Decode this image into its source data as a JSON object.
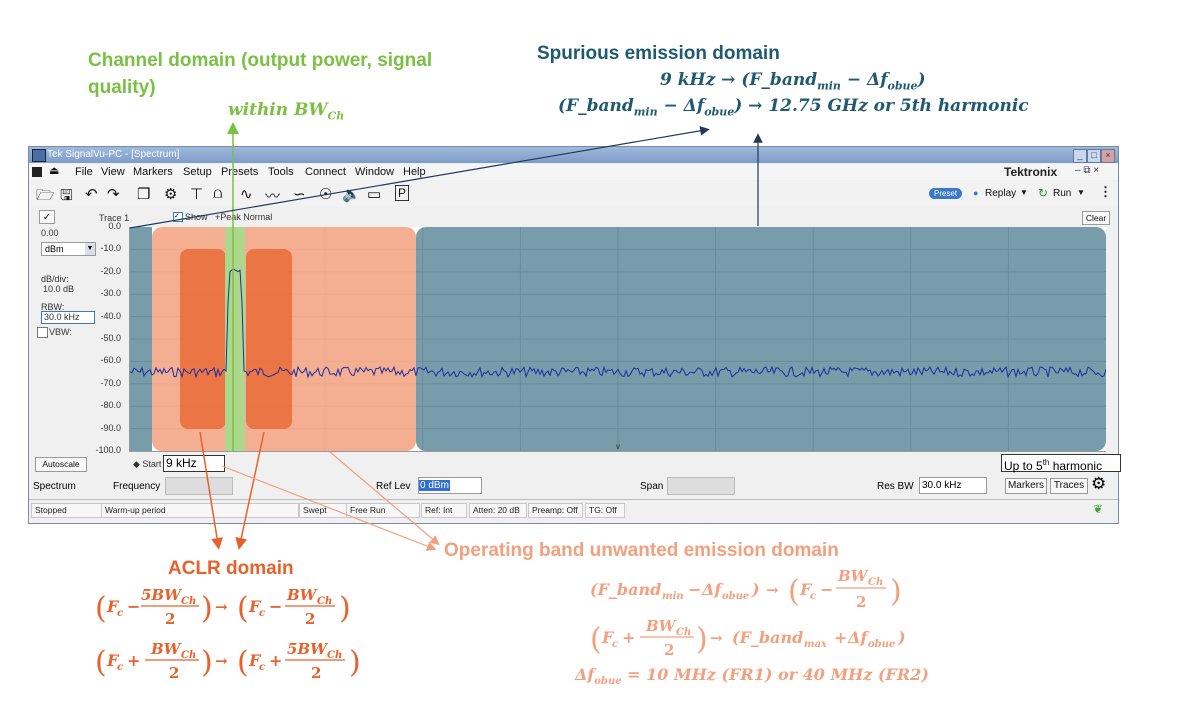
{
  "annotations": {
    "channel_title": "Channel domain (output power, signal quality)",
    "channel_formula": "within BW",
    "channel_formula_sub": "Ch",
    "spurious_title": "Spurious emission domain",
    "spurious_line1": "9 kHz → (F_band",
    "spurious_line1_sub1": "min",
    "spurious_line1_mid": " − Δf",
    "spurious_line1_sub2": "obue",
    "spurious_line1_end": ")",
    "spurious_line2": "(F_band",
    "spurious_line2_sub1": "min",
    "spurious_line2_mid": " − Δf",
    "spurious_line2_sub2": "obue",
    "spurious_line2_end": ") → 12.75 GHz or 5th harmonic",
    "aclr_title": "ACLR domain",
    "obue_title": "Operating band unwanted emission domain",
    "obue_line3": "Δf",
    "obue_line3_sub": "obue",
    "obue_line3_end": " = 10 MHz (FR1) or 40 MHz (FR2)",
    "start_box": "9 kHz",
    "end_box": "Up to 5",
    "end_box_sup": "th",
    "end_box_end": " harmonic"
  },
  "window": {
    "title": "Tek SignalVu-PC - [Spectrum]",
    "brand": "Tektronix",
    "menu": [
      "File",
      "View",
      "Markers",
      "Setup",
      "Presets",
      "Tools",
      "Connect",
      "Window",
      "Help"
    ],
    "preset": "Preset",
    "replay": "Replay",
    "run": "Run"
  },
  "panel": {
    "trace": "Trace 1",
    "show": "Show",
    "peak": "+Peak Normal",
    "clear": "Clear",
    "ref_value": "0.00",
    "unit": "dBm",
    "dbdiv_label": "dB/div:",
    "dbdiv_value": "10.0 dB",
    "rbw_label": "RBW:",
    "rbw_value": "30.0 kHz",
    "vbw_label": "VBW:",
    "autoscale": "Autoscale",
    "start": "Start"
  },
  "y_ticks": [
    "0.0",
    "-10.0",
    "-20.0",
    "-30.0",
    "-40.0",
    "-50.0",
    "-60.0",
    "-70.0",
    "-80.0",
    "-90.0",
    "-100.0"
  ],
  "controls": {
    "spectrum": "Spectrum",
    "frequency": "Frequency",
    "ref_lev": "Ref Lev",
    "ref_lev_value": "0 dBm",
    "span": "Span",
    "res_bw": "Res BW",
    "res_bw_value": "30.0 kHz",
    "markers": "Markers",
    "traces": "Traces"
  },
  "status": [
    "Stopped",
    "Warm-up period",
    "Swept",
    "Free Run",
    "Ref: Int",
    "Atten: 20 dB",
    "Preamp: Off",
    "TG: Off"
  ],
  "colors": {
    "channel": "#7ac143",
    "spurious": "#1f5a72",
    "aclr": "#e8612c",
    "obue": "#f2a07e",
    "trace": "#1a2fa0"
  }
}
